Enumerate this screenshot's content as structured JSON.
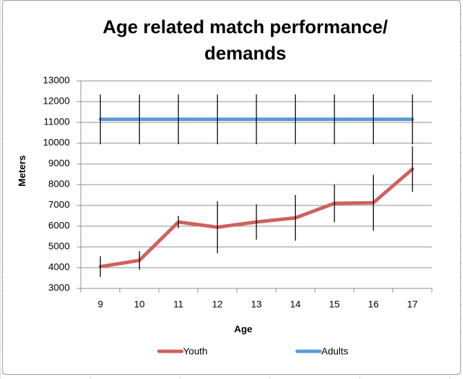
{
  "chart_data": {
    "type": "line",
    "title": "Age related match performance/ demands",
    "x_label": "Age",
    "y_label": "Meters",
    "categories": [
      "9",
      "10",
      "11",
      "12",
      "13",
      "14",
      "15",
      "16",
      "17"
    ],
    "series": [
      {
        "name": "Youth",
        "color": "#d0605e",
        "values": [
          4050,
          4350,
          6200,
          5950,
          6200,
          6400,
          7100,
          7130,
          8750
        ],
        "errors": [
          500,
          450,
          300,
          1250,
          850,
          1100,
          900,
          1350,
          1100
        ]
      },
      {
        "name": "Adults",
        "color": "#5b9bd5",
        "values": [
          11150,
          11150,
          11150,
          11150,
          11150,
          11150,
          11150,
          11150,
          11150
        ],
        "errors": [
          1200,
          1200,
          1200,
          1200,
          1200,
          1200,
          1200,
          1200,
          1200
        ]
      }
    ],
    "ylim": [
      3000,
      13000
    ],
    "yticks": [
      3000,
      4000,
      5000,
      6000,
      7000,
      8000,
      9000,
      10000,
      11000,
      12000,
      13000
    ],
    "grid": true
  }
}
